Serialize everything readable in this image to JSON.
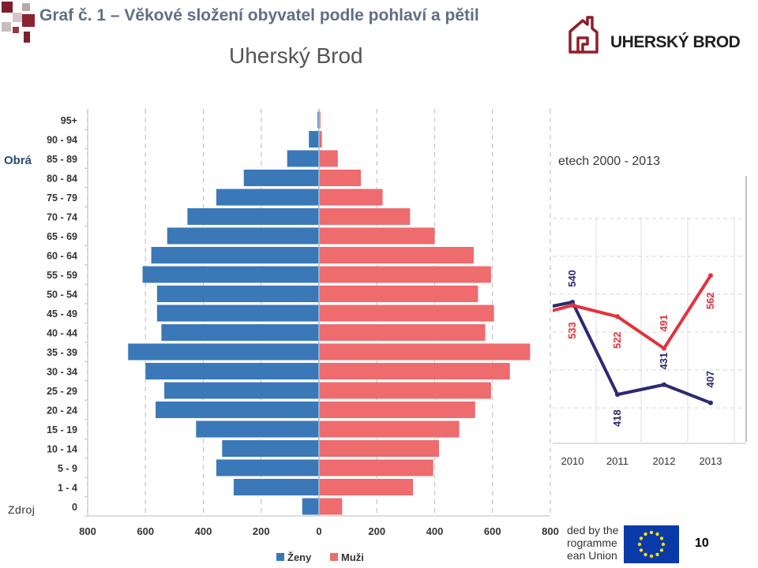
{
  "slide": {
    "heading": "Graf č. 1 – Věkové složení obyvatel podle pohlaví a pětil",
    "side_text_left": "Obrá",
    "source_prefix": "Zdroj",
    "page_number": "10",
    "logo_text": "UHERSKÝ BROD",
    "funding_lines": [
      "ded by the",
      "rogramme",
      "ean Union"
    ]
  },
  "colors": {
    "women": "#3a78b8",
    "men": "#ee6b6e",
    "line_blue": "#2b2a72",
    "line_red": "#e2333b",
    "logo_red": "#8d1f2b",
    "eu_blue": "#0a3aa8",
    "eu_star": "#ffdd00"
  },
  "icons": {
    "logo": "house-logo-icon",
    "eu_flag": "eu-flag-icon"
  },
  "chart_data": [
    {
      "type": "bar",
      "subtype": "population-pyramid",
      "title": "Uherský Brod",
      "categories": [
        "0",
        "1 - 4",
        "5 - 9",
        "10 - 14",
        "15 - 19",
        "20 - 24",
        "25 - 29",
        "30 - 34",
        "35 - 39",
        "40 - 44",
        "45 - 49",
        "50 - 54",
        "55 - 59",
        "60 - 64",
        "65 - 69",
        "70 - 74",
        "75 - 79",
        "80 - 84",
        "85 - 89",
        "90 - 94",
        "95+"
      ],
      "series": [
        {
          "name": "Ženy",
          "values": [
            58,
            295,
            355,
            335,
            425,
            565,
            535,
            600,
            660,
            545,
            560,
            560,
            610,
            580,
            525,
            455,
            355,
            260,
            110,
            35,
            5
          ]
        },
        {
          "name": "Muži",
          "values": [
            80,
            325,
            395,
            415,
            485,
            540,
            595,
            660,
            730,
            575,
            605,
            550,
            595,
            535,
            400,
            315,
            220,
            145,
            65,
            10,
            5
          ]
        }
      ],
      "xlim": [
        -800,
        800
      ],
      "xticks": [
        "800",
        "600",
        "400",
        "200",
        "0",
        "200",
        "400",
        "600",
        "800"
      ],
      "grid": true,
      "legend": "bottom"
    },
    {
      "type": "line",
      "title": "etech 2000 - 2013",
      "categories": [
        "2010",
        "2011",
        "2012",
        "2013"
      ],
      "series": [
        {
          "values": [
            540,
            418,
            431,
            407
          ],
          "labels": [
            "540",
            "418",
            "431",
            "407"
          ]
        },
        {
          "values": [
            533,
            522,
            491,
            562
          ],
          "labels": [
            "533",
            "522",
            "491",
            "562"
          ]
        }
      ],
      "grid": true
    }
  ]
}
